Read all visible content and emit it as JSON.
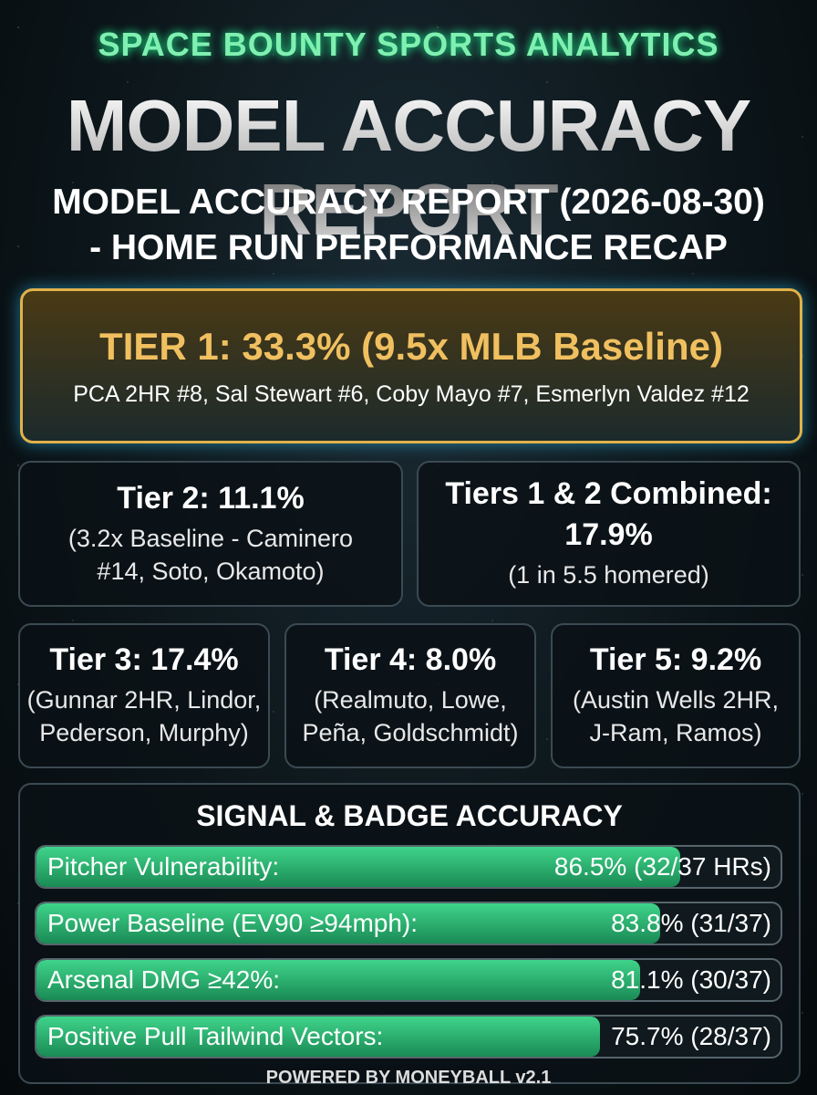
{
  "header": {
    "brand": "SPACE BOUNTY SPORTS ANALYTICS",
    "title": "MODEL ACCURACY REPORT",
    "subtitle_line1": "MODEL ACCURACY REPORT (2026-08-30)",
    "subtitle_line2": "- HOME RUN PERFORMANCE RECAP"
  },
  "tier1": {
    "headline": "TIER 1: 33.3% (9.5x MLB Baseline)",
    "players": "PCA 2HR #8, Sal Stewart #6, Coby Mayo #7, Esmerlyn Valdez #12"
  },
  "cards": [
    {
      "title": "Tier 2: 11.1%",
      "lines": [
        "(3.2x Baseline - Caminero",
        "#14, Soto, Okamoto)"
      ]
    },
    {
      "title": "Tiers 1 & 2 Combined:",
      "lines": [
        "17.9%",
        "(1 in 5.5 homered)"
      ]
    },
    {
      "title": "Tier 3: 17.4%",
      "lines": [
        "(Gunnar 2HR, Lindor,",
        "Pederson, Murphy)"
      ]
    },
    {
      "title": "Tier 4: 8.0%",
      "lines": [
        "(Realmuto, Lowe,",
        "Peña, Goldschmidt)"
      ]
    },
    {
      "title": "Tier 5: 9.2%",
      "lines": [
        "(Austin Wells 2HR,",
        "J-Ram, Ramos)"
      ]
    }
  ],
  "signals": {
    "title": "SIGNAL & BADGE ACCURACY",
    "rows": [
      {
        "label": "Pitcher Vulnerability:",
        "value": 86.5,
        "value_label": "86.5% (32/37 HRs)"
      },
      {
        "label": "Power Baseline (EV90 ≥94mph):",
        "value": 83.8,
        "value_label": "83.8% (31/37)"
      },
      {
        "label": "Arsenal DMG ≥42%:",
        "value": 81.1,
        "value_label": "81.1% (30/37)"
      },
      {
        "label": "Positive Pull Tailwind Vectors:",
        "value": 75.7,
        "value_label": "75.7% (28/37)"
      }
    ]
  },
  "footer": "POWERED BY MONEYBALL v2.1"
}
